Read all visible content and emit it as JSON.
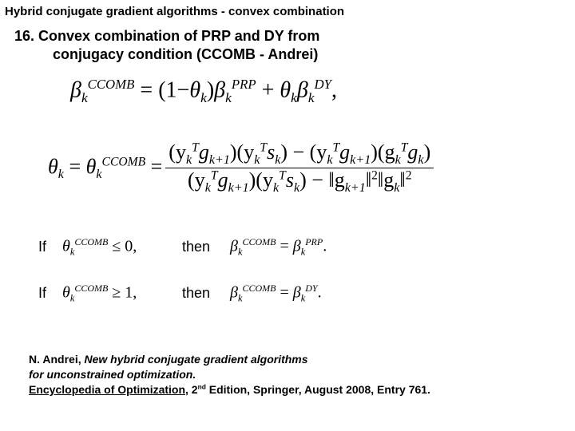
{
  "header": "Hybrid conjugate gradient algorithms   -   convex combination",
  "title": {
    "number": "16.",
    "line1": "Convex combination of PRP and DY from",
    "line2": "conjugacy condition (CCOMB - Andrei)"
  },
  "eq1": {
    "lhs_sym": "β",
    "lhs_sub": "k",
    "lhs_sup": "CCOMB",
    "t1a": "(1−",
    "t1_theta": "θ",
    "t1_sub": "k",
    "t1b": ")",
    "b1_sym": "β",
    "b1_sub": "k",
    "b1_sup": "PRP",
    "plus": " + ",
    "t2_theta": "θ",
    "t2_sub": "k",
    "b2_sym": "β",
    "b2_sub": "k",
    "b2_sup": "DY",
    "comma": ","
  },
  "eq2": {
    "theta": "θ",
    "theta_sub": "k",
    "eq": " = ",
    "theta2": "θ",
    "theta2_sub": "k",
    "theta2_sup": "CCOMB",
    "num_p1": "(y",
    "num_p1_sub": "k",
    "num_p1_sup": "T",
    "num_p2": "g",
    "num_p2_sub": "k+1",
    "num_p3": ")(y",
    "num_p3_sub": "k",
    "num_p3_sup": "T",
    "num_p4": "s",
    "num_p4_sub": "k",
    "num_p5": ") − (y",
    "num_p5_sub": "k",
    "num_p5_sup": "T",
    "num_p6": "g",
    "num_p6_sub": "k+1",
    "num_p7": ")(g",
    "num_p7_sub": "k",
    "num_p7_sup": "T",
    "num_p8": "g",
    "num_p8_sub": "k",
    "num_p9": ")",
    "den_p1": "(y",
    "den_p1_sub": "k",
    "den_p1_sup": "T",
    "den_p2": "g",
    "den_p2_sub": "k+1",
    "den_p3": ")(y",
    "den_p3_sub": "k",
    "den_p3_sup": "T",
    "den_p4": "s",
    "den_p4_sub": "k",
    "den_p5": ") − ",
    "den_n1a": "‖g",
    "den_n1_sub": "k+1",
    "den_n1b": "‖",
    "den_n1_sup": "2",
    "den_n2a": "‖g",
    "den_n2_sub": "k",
    "den_n2b": "‖",
    "den_n2_sup": "2"
  },
  "cond1": {
    "if": "If",
    "sym": "θ",
    "sub": "k",
    "sup": "CCOMB",
    "rel": " ≤ 0,",
    "then": "then",
    "r_sym": "β",
    "r_sub": "k",
    "r_sup": "CCOMB",
    "r_eq": " = ",
    "r2_sym": "β",
    "r2_sub": "k",
    "r2_sup": "PRP",
    "dot": "."
  },
  "cond2": {
    "if": "If",
    "sym": "θ",
    "sub": "k",
    "sup": "CCOMB",
    "rel": " ≥ 1,",
    "then": "then",
    "r_sym": "β",
    "r_sub": "k",
    "r_sup": "CCOMB",
    "r_eq": " = ",
    "r2_sym": "β",
    "r2_sub": "k",
    "r2_sup": "DY",
    "dot": "."
  },
  "ref": {
    "author": "N. Andrei,",
    "title_ital": "New hybrid conjugate gradient algorithms",
    "line2_ital": "for unconstrained optimization.",
    "journal": "Encyclopedia of Optimization",
    "rest1": ", 2",
    "nd": "nd",
    "rest2": " Edition, Springer, August 2008, Entry 761."
  },
  "style": {
    "bg": "#ffffff",
    "text": "#000000",
    "header_fontsize": 15,
    "title_fontsize": 18,
    "eq_fontsize": 28,
    "eq2_fontsize": 26,
    "cond_fontsize": 18,
    "ref_fontsize": 14
  }
}
